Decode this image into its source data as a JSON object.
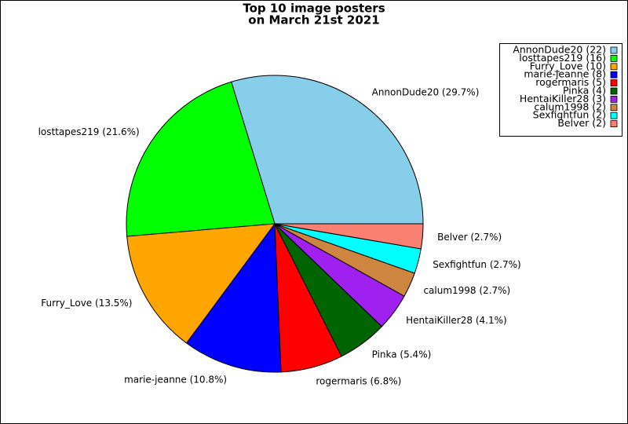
{
  "chart_data": {
    "type": "pie",
    "title": [
      "Top 10 image posters",
      "on March 21st 2021"
    ],
    "labels": [
      "AnnonDude20 (22)",
      "losttapes219 (16)",
      "Furry_Love (10)",
      "marie-jeanne (8)",
      "rogermaris (5)",
      "Pinka (4)",
      "HentaiKiller28 (3)",
      "calum1998 (2)",
      "Sexfightfun (2)",
      "Belver (2)"
    ],
    "values": [
      22,
      16,
      10,
      8,
      5,
      4,
      3,
      2,
      2,
      2
    ],
    "value_labels": [
      "AnnonDude20 (29.7%)",
      "losttapes219 (21.6%)",
      "Furry_Love (13.5%)",
      "marie-jeanne (10.8%)",
      "rogermaris (6.8%)",
      "Pinka (5.4%)",
      "HentaiKiller28 (4.1%)",
      "calum1998 (2.7%)",
      "Sexfightfun (2.7%)",
      "Belver (2.7%)"
    ],
    "colors": [
      "#87ceeb",
      "#00ff00",
      "#ffa500",
      "#0000ff",
      "#ff0000",
      "#006400",
      "#a020f0",
      "#cd853f",
      "#00ffff",
      "#fa8072"
    ],
    "legend": "upper right"
  }
}
